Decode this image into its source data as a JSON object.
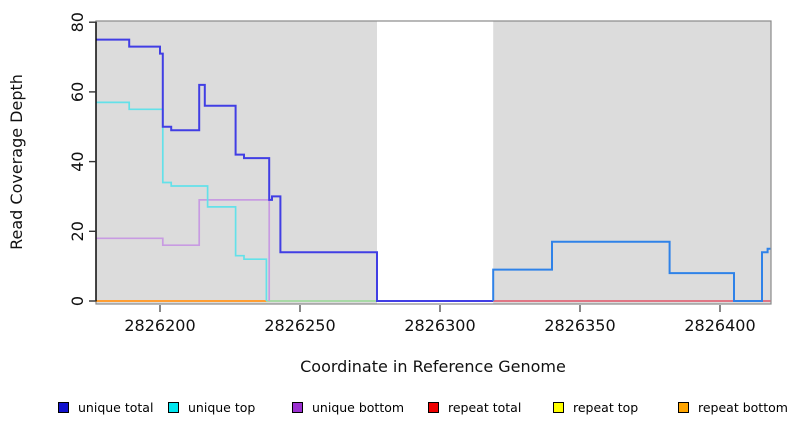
{
  "figure": {
    "x_axis_label": "Coordinate in Reference Genome",
    "y_axis_label": "Read Coverage Depth"
  },
  "legend": {
    "items": [
      {
        "label": "unique total",
        "color": "#1111CC"
      },
      {
        "label": "unique top",
        "color": "#00E5EE"
      },
      {
        "label": "unique bottom",
        "color": "#9B30D0"
      },
      {
        "label": "repeat total",
        "color": "#EE0000"
      },
      {
        "label": "repeat top",
        "color": "#FFFF00"
      },
      {
        "label": "repeat bottom",
        "color": "#FFA500"
      }
    ]
  },
  "chart_data": {
    "type": "line",
    "subtype": "step",
    "title": "",
    "xlabel": "Coordinate in Reference Genome",
    "ylabel": "Read Coverage Depth",
    "xlim": [
      2826177,
      2826418
    ],
    "ylim": [
      0,
      80
    ],
    "x_ticks": [
      2826200,
      2826250,
      2826300,
      2826350,
      2826400
    ],
    "y_ticks": [
      0,
      20,
      40,
      60,
      80
    ],
    "grid": false,
    "legend_position": "bottom",
    "plot_background": "#DCDCDC",
    "unshaded_band": {
      "from": 2826277.5,
      "to": 2826319,
      "color": "#FFFFFF"
    },
    "series": [
      {
        "name": "unique total",
        "color": "#1111CC",
        "steps": [
          [
            2826177,
            75
          ],
          [
            2826189,
            73
          ],
          [
            2826200,
            71
          ],
          [
            2826201,
            50
          ],
          [
            2826204,
            49
          ],
          [
            2826214,
            62
          ],
          [
            2826216,
            56
          ],
          [
            2826227,
            42
          ],
          [
            2826230,
            41
          ],
          [
            2826239,
            29
          ],
          [
            2826240,
            30
          ],
          [
            2826243,
            14
          ],
          [
            2826277.5,
            0
          ],
          [
            2826319,
            9
          ],
          [
            2826340,
            17
          ],
          [
            2826382,
            8
          ],
          [
            2826405,
            0
          ],
          [
            2826415,
            14
          ],
          [
            2826417,
            15
          ],
          [
            2826418,
            15
          ]
        ]
      },
      {
        "name": "unique top",
        "color": "#00E5EE",
        "steps": [
          [
            2826177,
            57
          ],
          [
            2826189,
            55
          ],
          [
            2826201,
            34
          ],
          [
            2826204,
            33
          ],
          [
            2826217,
            27
          ],
          [
            2826227,
            13
          ],
          [
            2826230,
            12
          ],
          [
            2826238,
            0
          ],
          [
            2826418,
            0
          ]
        ]
      },
      {
        "name": "unique bottom",
        "color": "#9B30D0",
        "steps": [
          [
            2826177,
            18
          ],
          [
            2826201,
            16
          ],
          [
            2826214,
            29
          ],
          [
            2826239,
            0
          ],
          [
            2826418,
            0
          ]
        ]
      },
      {
        "name": "repeat total",
        "color": "#EE0000",
        "steps": [
          [
            2826177,
            0
          ],
          [
            2826418,
            0
          ]
        ]
      },
      {
        "name": "repeat top",
        "color": "#FFFF00",
        "steps": [
          [
            2826177,
            0
          ],
          [
            2826418,
            0
          ]
        ]
      },
      {
        "name": "repeat bottom",
        "color": "#FFA500",
        "steps": [
          [
            2826177,
            0
          ],
          [
            2826418,
            0
          ]
        ]
      }
    ],
    "render_polylines": [
      {
        "name": "repeat-bottom-zero",
        "color": "#FF9E33",
        "width": 2,
        "vertices": [
          [
            2826177,
            0
          ],
          [
            2826238,
            0
          ]
        ]
      },
      {
        "name": "overlap-zero-green",
        "color": "#A8D9A6",
        "width": 2,
        "vertices": [
          [
            2826238,
            0
          ],
          [
            2826277.5,
            0
          ]
        ]
      },
      {
        "name": "repeat-total-zero",
        "color": "#E25468",
        "width": 1.6,
        "vertices": [
          [
            2826319,
            0
          ],
          [
            2826418,
            0
          ]
        ]
      },
      {
        "name": "unique-bottom",
        "color": "#C89BE2",
        "width": 1.7,
        "vertices": [
          [
            2826177,
            18
          ],
          [
            2826201,
            18
          ],
          [
            2826201,
            16
          ],
          [
            2826214,
            16
          ],
          [
            2826214,
            29
          ],
          [
            2826239,
            29
          ],
          [
            2826239,
            0
          ]
        ]
      },
      {
        "name": "unique-top",
        "color": "#63E1E9",
        "width": 1.7,
        "vertices": [
          [
            2826177,
            57
          ],
          [
            2826189,
            57
          ],
          [
            2826189,
            55
          ],
          [
            2826201,
            55
          ],
          [
            2826201,
            34
          ],
          [
            2826204,
            34
          ],
          [
            2826204,
            33
          ],
          [
            2826217,
            33
          ],
          [
            2826217,
            27
          ],
          [
            2826227,
            27
          ],
          [
            2826227,
            13
          ],
          [
            2826230,
            13
          ],
          [
            2826230,
            12
          ],
          [
            2826238,
            12
          ],
          [
            2826238,
            0
          ]
        ]
      },
      {
        "name": "unique-total-left",
        "color": "#413EE4",
        "width": 2,
        "vertices": [
          [
            2826177,
            75
          ],
          [
            2826189,
            75
          ],
          [
            2826189,
            73
          ],
          [
            2826200,
            73
          ],
          [
            2826200,
            71
          ],
          [
            2826201,
            71
          ],
          [
            2826201,
            50
          ],
          [
            2826204,
            50
          ],
          [
            2826204,
            49
          ],
          [
            2826214,
            49
          ],
          [
            2826214,
            62
          ],
          [
            2826216,
            62
          ],
          [
            2826216,
            56
          ],
          [
            2826227,
            56
          ],
          [
            2826227,
            42
          ],
          [
            2826230,
            42
          ],
          [
            2826230,
            41
          ],
          [
            2826239,
            41
          ],
          [
            2826239,
            29
          ],
          [
            2826240,
            29
          ],
          [
            2826240,
            30
          ],
          [
            2826243,
            30
          ],
          [
            2826243,
            14
          ],
          [
            2826277.5,
            14
          ],
          [
            2826277.5,
            0
          ],
          [
            2826319,
            0
          ]
        ]
      },
      {
        "name": "unique-total-right",
        "color": "#2F82E8",
        "width": 2,
        "vertices": [
          [
            2826319,
            0
          ],
          [
            2826319,
            9
          ],
          [
            2826340,
            9
          ],
          [
            2826340,
            17
          ],
          [
            2826382,
            17
          ],
          [
            2826382,
            8
          ],
          [
            2826405,
            8
          ],
          [
            2826405,
            0
          ],
          [
            2826415,
            0
          ],
          [
            2826415,
            14
          ],
          [
            2826417,
            14
          ],
          [
            2826417,
            15
          ],
          [
            2826418,
            15
          ]
        ]
      }
    ]
  }
}
